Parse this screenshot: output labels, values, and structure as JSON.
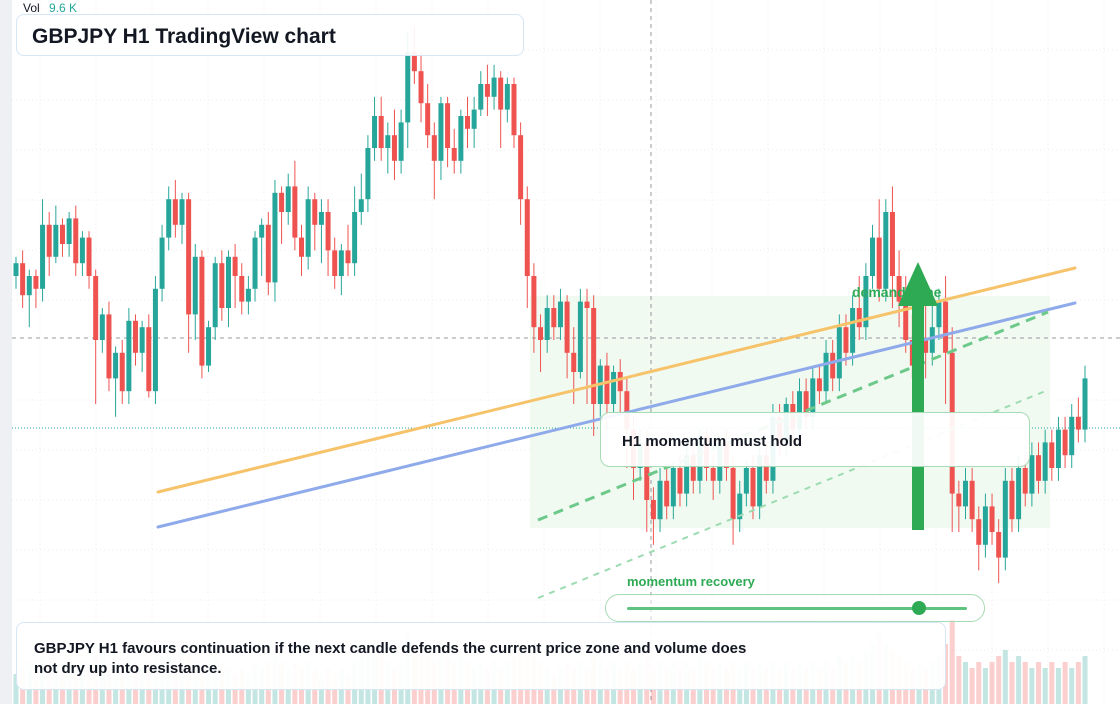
{
  "header": {
    "title": "GBPJPY H1 TradingView chart",
    "volume_label": "Vol",
    "volume_value": "9.6 K"
  },
  "annotations": {
    "callout": "H1 momentum must hold",
    "zone_label": "demand zone",
    "momentum_label": "momentum recovery",
    "momentum_level": 0.86,
    "note": "GBPJPY H1 favours continuation if the next candle defends the current price zone and volume does not dry up into resistance."
  },
  "colors": {
    "up": "#26a69a",
    "down": "#ef5350",
    "trend_orange": "#f6c36b",
    "trend_blue": "#8eaaea",
    "signal_green": "#2eaa55",
    "zone_fill": "#eef9ef"
  },
  "chart_data": {
    "type": "candlestick",
    "symbol": "GBPJPY",
    "timeframe": "H1",
    "price_range": [
      0,
      100
    ],
    "candles": [
      [
        60,
        62,
        58,
        63,
        70,
        5
      ],
      [
        62,
        57,
        55,
        64,
        80,
        6
      ],
      [
        57,
        60,
        52,
        61,
        75,
        7
      ],
      [
        60,
        58,
        55,
        61,
        65,
        5
      ],
      [
        58,
        68,
        56,
        72,
        70,
        8
      ],
      [
        68,
        63,
        60,
        70,
        60,
        6
      ],
      [
        63,
        68,
        62,
        71,
        55,
        7
      ],
      [
        68,
        65,
        63,
        69,
        50,
        5
      ],
      [
        65,
        69,
        63,
        70,
        45,
        6
      ],
      [
        69,
        62,
        60,
        71,
        40,
        5
      ],
      [
        62,
        66,
        60,
        67,
        38,
        7
      ],
      [
        66,
        60,
        58,
        67,
        35,
        6
      ],
      [
        60,
        50,
        40,
        61,
        30,
        8
      ],
      [
        50,
        54,
        48,
        55,
        28,
        9
      ],
      [
        54,
        44,
        42,
        56,
        40,
        6
      ],
      [
        44,
        48,
        38,
        49,
        45,
        7
      ],
      [
        48,
        42,
        40,
        50,
        42,
        6
      ],
      [
        42,
        53,
        40,
        55,
        50,
        8
      ],
      [
        53,
        48,
        46,
        54,
        48,
        7
      ],
      [
        48,
        52,
        45,
        53,
        46,
        6
      ],
      [
        52,
        42,
        41,
        54,
        44,
        7
      ],
      [
        42,
        58,
        40,
        60,
        52,
        9
      ],
      [
        58,
        66,
        56,
        68,
        55,
        8
      ],
      [
        66,
        72,
        64,
        74,
        50,
        9
      ],
      [
        72,
        68,
        66,
        75,
        48,
        7
      ],
      [
        68,
        72,
        65,
        73,
        46,
        6
      ],
      [
        72,
        54,
        48,
        73,
        40,
        8
      ],
      [
        54,
        63,
        50,
        65,
        42,
        7
      ],
      [
        63,
        46,
        44,
        64,
        38,
        6
      ],
      [
        46,
        52,
        45,
        53,
        40,
        7
      ],
      [
        52,
        62,
        50,
        63,
        44,
        8
      ],
      [
        62,
        55,
        53,
        64,
        42,
        7
      ],
      [
        55,
        63,
        52,
        64,
        45,
        6
      ],
      [
        63,
        60,
        55,
        65,
        40,
        5
      ],
      [
        60,
        56,
        54,
        62,
        42,
        6
      ],
      [
        56,
        58,
        54,
        60,
        40,
        5
      ],
      [
        58,
        66,
        56,
        67,
        45,
        7
      ],
      [
        66,
        68,
        60,
        69,
        50,
        6
      ],
      [
        68,
        59,
        57,
        70,
        48,
        7
      ],
      [
        59,
        73,
        56,
        75,
        55,
        8
      ],
      [
        73,
        70,
        65,
        74,
        52,
        7
      ],
      [
        70,
        74,
        68,
        76,
        50,
        6
      ],
      [
        74,
        66,
        64,
        78,
        48,
        7
      ],
      [
        66,
        63,
        60,
        68,
        46,
        6
      ],
      [
        63,
        72,
        61,
        74,
        44,
        7
      ],
      [
        72,
        68,
        64,
        73,
        42,
        6
      ],
      [
        68,
        70,
        62,
        72,
        40,
        5
      ],
      [
        70,
        64,
        60,
        72,
        38,
        6
      ],
      [
        64,
        60,
        58,
        66,
        36,
        5
      ],
      [
        60,
        64,
        57,
        65,
        35,
        6
      ],
      [
        64,
        62,
        60,
        68,
        34,
        5
      ],
      [
        62,
        70,
        60,
        74,
        40,
        7
      ],
      [
        70,
        72,
        68,
        76,
        44,
        8
      ],
      [
        72,
        80,
        70,
        82,
        50,
        9
      ],
      [
        80,
        85,
        78,
        88,
        55,
        10
      ],
      [
        85,
        80,
        78,
        88,
        50,
        8
      ],
      [
        80,
        82,
        76,
        84,
        48,
        7
      ],
      [
        82,
        78,
        75,
        86,
        46,
        6
      ],
      [
        78,
        84,
        76,
        86,
        50,
        7
      ],
      [
        84,
        95,
        80,
        98,
        60,
        12
      ],
      [
        95,
        92,
        90,
        99,
        58,
        10
      ],
      [
        92,
        87,
        84,
        95,
        55,
        9
      ],
      [
        87,
        82,
        80,
        90,
        52,
        8
      ],
      [
        82,
        78,
        72,
        84,
        50,
        7
      ],
      [
        78,
        87,
        75,
        88,
        55,
        9
      ],
      [
        87,
        80,
        77,
        88,
        52,
        8
      ],
      [
        80,
        78,
        76,
        83,
        50,
        7
      ],
      [
        78,
        85,
        76,
        86,
        52,
        8
      ],
      [
        85,
        83,
        80,
        88,
        50,
        7
      ],
      [
        83,
        86,
        80,
        88,
        48,
        6
      ],
      [
        86,
        90,
        85,
        92,
        52,
        7
      ],
      [
        90,
        88,
        85,
        93,
        50,
        6
      ],
      [
        88,
        91,
        86,
        93,
        48,
        7
      ],
      [
        91,
        86,
        80,
        92,
        46,
        6
      ],
      [
        86,
        90,
        84,
        91,
        44,
        7
      ],
      [
        90,
        82,
        80,
        91,
        42,
        8
      ],
      [
        82,
        72,
        68,
        84,
        40,
        10
      ],
      [
        72,
        60,
        55,
        74,
        38,
        9
      ],
      [
        60,
        52,
        48,
        62,
        36,
        8
      ],
      [
        52,
        50,
        45,
        54,
        34,
        7
      ],
      [
        50,
        55,
        48,
        57,
        36,
        6
      ],
      [
        55,
        52,
        50,
        57,
        34,
        5
      ],
      [
        52,
        56,
        50,
        58,
        36,
        6
      ],
      [
        56,
        48,
        44,
        57,
        34,
        7
      ],
      [
        48,
        45,
        40,
        52,
        32,
        6
      ],
      [
        45,
        56,
        44,
        58,
        36,
        7
      ],
      [
        56,
        55,
        40,
        58,
        34,
        6
      ],
      [
        55,
        40,
        35,
        57,
        30,
        8
      ],
      [
        40,
        46,
        38,
        47,
        32,
        7
      ],
      [
        46,
        40,
        36,
        48,
        30,
        6
      ],
      [
        40,
        45,
        38,
        46,
        32,
        7
      ],
      [
        45,
        42,
        38,
        47,
        30,
        6
      ],
      [
        42,
        36,
        30,
        44,
        28,
        7
      ],
      [
        36,
        30,
        25,
        38,
        26,
        6
      ],
      [
        30,
        34,
        28,
        36,
        28,
        7
      ],
      [
        34,
        25,
        20,
        36,
        26,
        8
      ],
      [
        25,
        22,
        18,
        27,
        24,
        6
      ],
      [
        22,
        28,
        20,
        30,
        26,
        7
      ],
      [
        28,
        24,
        22,
        30,
        24,
        6
      ],
      [
        24,
        30,
        22,
        31,
        26,
        7
      ],
      [
        30,
        26,
        24,
        32,
        24,
        6
      ],
      [
        26,
        32,
        24,
        34,
        26,
        7
      ],
      [
        32,
        28,
        26,
        33,
        25,
        6
      ],
      [
        28,
        35,
        26,
        36,
        27,
        8
      ],
      [
        35,
        30,
        28,
        36,
        26,
        7
      ],
      [
        30,
        28,
        25,
        32,
        25,
        6
      ],
      [
        28,
        34,
        26,
        35,
        27,
        7
      ],
      [
        34,
        30,
        28,
        36,
        26,
        6
      ],
      [
        30,
        22,
        18,
        32,
        24,
        7
      ],
      [
        22,
        26,
        20,
        28,
        25,
        6
      ],
      [
        26,
        30,
        24,
        31,
        26,
        7
      ],
      [
        30,
        24,
        22,
        32,
        25,
        6
      ],
      [
        24,
        32,
        22,
        34,
        27,
        7
      ],
      [
        32,
        28,
        26,
        34,
        26,
        6
      ],
      [
        28,
        38,
        26,
        40,
        30,
        7
      ],
      [
        38,
        34,
        32,
        40,
        32,
        6
      ],
      [
        34,
        40,
        32,
        41,
        34,
        7
      ],
      [
        40,
        36,
        34,
        42,
        33,
        6
      ],
      [
        36,
        42,
        34,
        44,
        35,
        7
      ],
      [
        42,
        38,
        36,
        44,
        34,
        6
      ],
      [
        38,
        44,
        36,
        46,
        36,
        7
      ],
      [
        44,
        42,
        40,
        46,
        38,
        6
      ],
      [
        42,
        48,
        40,
        50,
        40,
        7
      ],
      [
        48,
        44,
        42,
        50,
        39,
        6
      ],
      [
        44,
        52,
        42,
        54,
        42,
        8
      ],
      [
        52,
        48,
        46,
        54,
        41,
        7
      ],
      [
        48,
        55,
        46,
        57,
        44,
        8
      ],
      [
        55,
        52,
        50,
        60,
        46,
        7
      ],
      [
        52,
        60,
        50,
        62,
        48,
        9
      ],
      [
        60,
        66,
        58,
        68,
        52,
        10
      ],
      [
        66,
        58,
        56,
        72,
        50,
        12
      ],
      [
        58,
        70,
        56,
        72,
        54,
        10
      ],
      [
        70,
        60,
        55,
        74,
        52,
        9
      ],
      [
        60,
        56,
        52,
        64,
        50,
        8
      ],
      [
        56,
        50,
        48,
        60,
        48,
        7
      ],
      [
        50,
        46,
        44,
        54,
        46,
        6
      ],
      [
        46,
        50,
        44,
        52,
        48,
        7
      ],
      [
        50,
        48,
        44,
        56,
        46,
        6
      ],
      [
        48,
        52,
        46,
        56,
        48,
        7
      ],
      [
        52,
        56,
        50,
        58,
        50,
        8
      ],
      [
        56,
        48,
        40,
        60,
        48,
        10
      ],
      [
        48,
        26,
        20,
        52,
        40,
        14
      ],
      [
        26,
        24,
        20,
        28,
        30,
        8
      ],
      [
        24,
        28,
        22,
        30,
        28,
        7
      ],
      [
        28,
        22,
        20,
        30,
        24,
        6
      ],
      [
        22,
        18,
        14,
        24,
        20,
        7
      ],
      [
        18,
        24,
        16,
        26,
        22,
        6
      ],
      [
        24,
        20,
        18,
        26,
        20,
        7
      ],
      [
        20,
        16,
        12,
        22,
        18,
        8
      ],
      [
        16,
        28,
        14,
        30,
        22,
        9
      ],
      [
        28,
        22,
        20,
        30,
        24,
        7
      ],
      [
        22,
        30,
        20,
        32,
        26,
        8
      ],
      [
        30,
        26,
        24,
        32,
        25,
        7
      ],
      [
        26,
        32,
        24,
        34,
        27,
        6
      ],
      [
        32,
        28,
        26,
        34,
        26,
        7
      ],
      [
        28,
        34,
        26,
        36,
        28,
        6
      ],
      [
        34,
        30,
        28,
        36,
        27,
        7
      ],
      [
        30,
        36,
        28,
        38,
        29,
        6
      ],
      [
        36,
        32,
        30,
        38,
        28,
        7
      ],
      [
        32,
        38,
        30,
        40,
        30,
        6
      ],
      [
        38,
        36,
        34,
        41,
        30,
        7
      ],
      [
        36,
        44,
        34,
        46,
        33,
        8
      ]
    ]
  }
}
